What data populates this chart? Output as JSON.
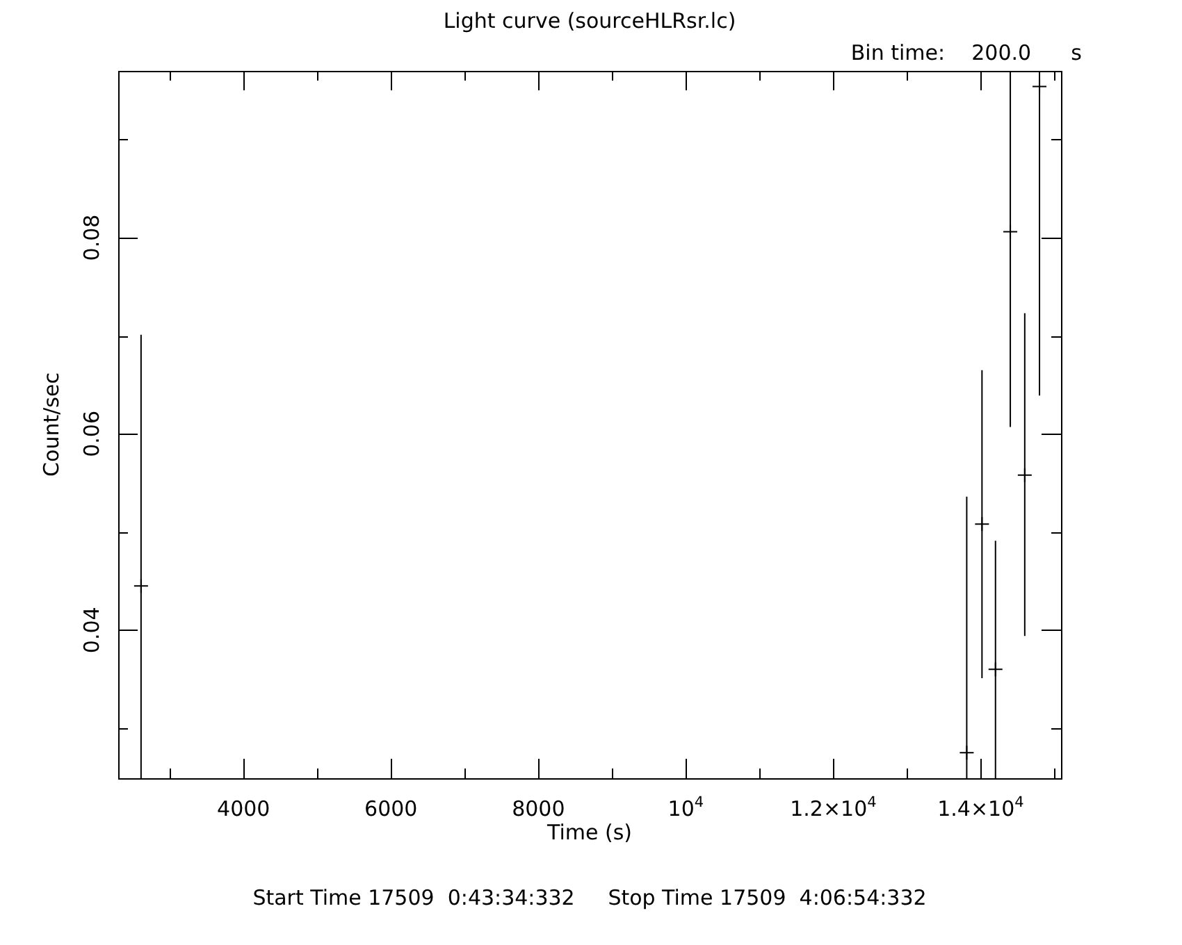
{
  "chart_data": {
    "type": "scatter",
    "title": "Light curve (sourceHLRsr.lc)",
    "subtitle": "Bin time:    200.0      s",
    "xlabel": "Time (s)",
    "ylabel": "Count/sec",
    "annotations": [
      "Start Time 17509  0:43:34:332     Stop Time 17509  4:06:54:332"
    ],
    "x": [
      2610,
      13811,
      14018,
      14201,
      14402,
      14598,
      14798
    ],
    "series": [
      {
        "color": "#000000",
        "values": [
          0.0445,
          0.0275,
          0.0508,
          0.036,
          0.0806,
          0.0558,
          0.0954
        ],
        "errors": [
          [
            0.0249,
            0.0701
          ],
          [
            0.0249,
            0.0536
          ],
          [
            0.0351,
            0.0665
          ],
          [
            0.0249,
            0.0491
          ],
          [
            0.0607,
            0.097
          ],
          [
            0.0394,
            0.0723
          ],
          [
            0.0639,
            0.097
          ]
        ]
      }
    ],
    "xlim": [
      2300,
      15090
    ],
    "xticks": [
      {
        "value": 3000,
        "label": null
      },
      4000,
      {
        "value": 5000,
        "label": null
      },
      6000,
      {
        "value": 7000,
        "label": null
      },
      8000,
      {
        "value": 9000,
        "label": null
      },
      {
        "value": 10000,
        "label": "10$^{4}$"
      },
      {
        "value": 11000,
        "label": null
      },
      {
        "value": 12000,
        "label": "1.2×10$^{4}$"
      },
      {
        "value": 13000,
        "label": null
      },
      {
        "value": 14000,
        "label": "1.4×10$^{4}$"
      },
      {
        "value": 15000,
        "label": null
      }
    ],
    "ylim": [
      0.0249,
      0.097
    ],
    "yticks": [
      {
        "value": 0.03,
        "label": null
      },
      0.04,
      {
        "value": 0.05,
        "label": null
      },
      0.06,
      {
        "value": 0.07,
        "label": null
      },
      0.08,
      {
        "value": 0.09,
        "label": null
      }
    ],
    "grid": false,
    "legend": false,
    "marker": "cross"
  }
}
